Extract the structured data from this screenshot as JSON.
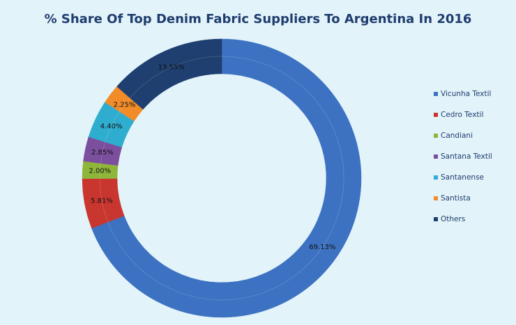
{
  "chart_data": {
    "type": "donut",
    "title": "% Share Of Top Denim Fabric Suppliers To Argentina In 2016",
    "categories": [
      "Vicunha Textil",
      "Cedro Textil",
      "Candiani",
      "Santana Textil",
      "Santanense",
      "Santista",
      "Others"
    ],
    "values": [
      69.13,
      5.81,
      2.0,
      2.85,
      4.4,
      2.25,
      13.55
    ],
    "value_labels": [
      "69.13%",
      "5.81%",
      "2.00%",
      "2.85%",
      "4.40%",
      "2.25%",
      "13.55%"
    ],
    "colors": [
      "#3d72c2",
      "#c9362f",
      "#8fb53a",
      "#7b4f9e",
      "#2fadcf",
      "#f28c28",
      "#1e3f6f"
    ],
    "legend": "right"
  }
}
